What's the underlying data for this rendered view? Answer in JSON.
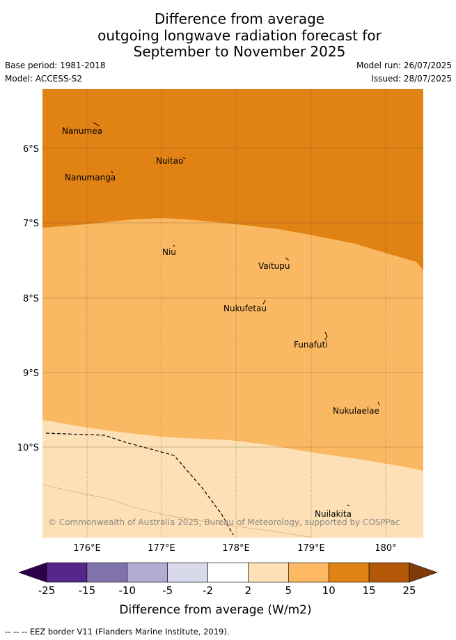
{
  "title": {
    "line1": "Difference from average",
    "line2": "outgoing longwave radiation forecast for",
    "line3": "September to November 2025"
  },
  "meta": {
    "base_period": "Base period: 1981-2018",
    "model": "Model: ACCESS-S2",
    "model_run": "Model run: 26/07/2025",
    "issued": "Issued: 28/07/2025"
  },
  "map": {
    "lat_labels": [
      "6°S",
      "7°S",
      "8°S",
      "9°S",
      "10°S"
    ],
    "lon_labels": [
      "176°E",
      "177°E",
      "178°E",
      "179°E",
      "180°"
    ],
    "places": [
      "Nanumea",
      "Nuitao",
      "Nanumanga",
      "Niu",
      "Vaitupu",
      "Nukufetau",
      "Funafuti",
      "Nukulaelae",
      "Nuilakita"
    ],
    "copyright": "© Commonwealth of Australia 2025, Bureau of Meteorology, supported by COSPPac",
    "colors": {
      "band_5_10": "#fbb862",
      "band_10_15": "#e08214",
      "band_2_5": "#fee0b6",
      "grid": "#7a5a30",
      "eez": "#000000"
    }
  },
  "colorbar": {
    "ticks": [
      "-25",
      "-15",
      "-10",
      "-5",
      "-2",
      "2",
      "5",
      "10",
      "15",
      "25"
    ],
    "colors": [
      "#2d004b",
      "#542788",
      "#8073ac",
      "#b2abd2",
      "#d8daeb",
      "#ffffff",
      "#fee0b6",
      "#fdb863",
      "#e08214",
      "#b35806",
      "#7f3b08"
    ],
    "label": "Difference from average (W/m2)"
  },
  "footer": {
    "legend_text": "--  --  -- EEZ border V11 (Flanders Marine Institute, 2019)."
  }
}
